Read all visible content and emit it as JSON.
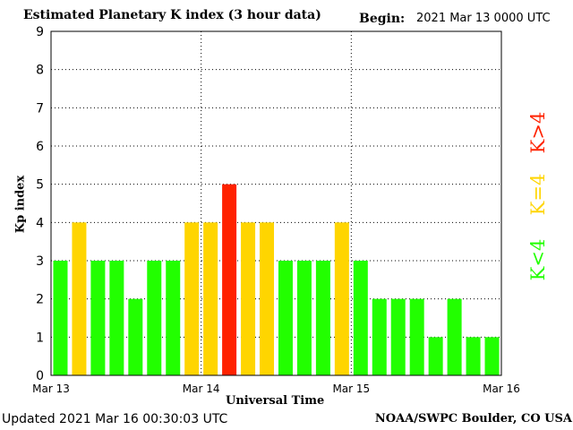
{
  "header": {
    "title": "Estimated Planetary K index (3 hour data)",
    "begin_label": "Begin:",
    "begin_value": "2021 Mar 13 0000 UTC"
  },
  "footer": {
    "updated": "Updated 2021 Mar 16 00:30:03 UTC",
    "credit": "NOAA/SWPC Boulder, CO USA"
  },
  "legend": {
    "high": "K>4",
    "mid": "K=4",
    "low": "K<4"
  },
  "colors": {
    "low": "#22ff00",
    "mid": "#ffd500",
    "high": "#ff2200",
    "grid": "#000000"
  },
  "chart_data": {
    "type": "bar",
    "title": "Estimated Planetary K index (3 hour data)",
    "xlabel": "Universal Time",
    "ylabel": "Kp index",
    "ylim": [
      0,
      9
    ],
    "yticks": [
      "0",
      "1",
      "2",
      "3",
      "4",
      "5",
      "6",
      "7",
      "8",
      "9"
    ],
    "xticks": [
      "Mar 13",
      "Mar 14",
      "Mar 15",
      "Mar 16"
    ],
    "grid": true,
    "categories": [
      "Mar 13 00-03",
      "Mar 13 03-06",
      "Mar 13 06-09",
      "Mar 13 09-12",
      "Mar 13 12-15",
      "Mar 13 15-18",
      "Mar 13 18-21",
      "Mar 13 21-24",
      "Mar 14 00-03",
      "Mar 14 03-06",
      "Mar 14 06-09",
      "Mar 14 09-12",
      "Mar 14 12-15",
      "Mar 14 15-18",
      "Mar 14 18-21",
      "Mar 14 21-24",
      "Mar 15 00-03",
      "Mar 15 03-06",
      "Mar 15 06-09",
      "Mar 15 09-12",
      "Mar 15 12-15",
      "Mar 15 15-18",
      "Mar 15 18-21",
      "Mar 15 21-24"
    ],
    "values": [
      3,
      4,
      3,
      3,
      2,
      3,
      3,
      4,
      4,
      5,
      4,
      4,
      3,
      3,
      3,
      4,
      3,
      2,
      2,
      2,
      1,
      2,
      1,
      1
    ]
  }
}
